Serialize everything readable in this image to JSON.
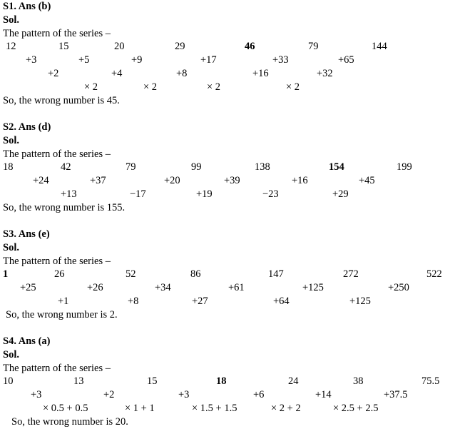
{
  "solutions": [
    {
      "heading": "S1. Ans (b)",
      "sol": "Sol.",
      "pattern": "The pattern of the series –",
      "rows": [
        [
          "12",
          "15",
          "20",
          "29",
          "46",
          "79",
          "144"
        ],
        [
          "+3",
          "+5",
          "+9",
          "+17",
          "+33",
          "+65"
        ],
        [
          "+2",
          "+4",
          "+8",
          "+16",
          "+32"
        ],
        [
          "× 2",
          "× 2",
          "× 2",
          "× 2"
        ]
      ],
      "conclusion": "So, the wrong number is 45."
    },
    {
      "heading": "S2. Ans (d)",
      "sol": "Sol.",
      "pattern": "The pattern of the series –",
      "rows": [
        [
          "18",
          "42",
          "79",
          "99",
          "138",
          "154",
          "199"
        ],
        [
          "+24",
          "+37",
          "+20",
          "+39",
          "+16",
          "+45"
        ],
        [
          "+13",
          "−17",
          "+19",
          "−23",
          "+29"
        ]
      ],
      "conclusion": "So, the wrong number is 155."
    },
    {
      "heading": "S3. Ans (e)",
      "sol": "Sol.",
      "pattern": "The pattern of the series –",
      "rows": [
        [
          "1",
          "26",
          "52",
          "86",
          "147",
          "272",
          "522"
        ],
        [
          "+25",
          "+26",
          "+34",
          "+61",
          "+125",
          "+250"
        ],
        [
          "+1",
          "+8",
          "+27",
          "+64",
          "+125"
        ]
      ],
      "conclusion": "So, the wrong number is 2."
    },
    {
      "heading": "S4. Ans (a)",
      "sol": "Sol.",
      "pattern": "The pattern of the series –",
      "rows": [
        [
          "10",
          "13",
          "15",
          "18",
          "24",
          "38",
          "75.5"
        ],
        [
          "+3",
          "+2",
          "+3",
          "+6",
          "+14",
          "+37.5"
        ],
        [
          "× 0.5 + 0.5",
          "× 1 + 1",
          "× 1.5 + 1.5",
          "× 2 + 2",
          "× 2.5 + 2.5"
        ]
      ],
      "conclusion": "So, the wrong number is 20."
    }
  ]
}
